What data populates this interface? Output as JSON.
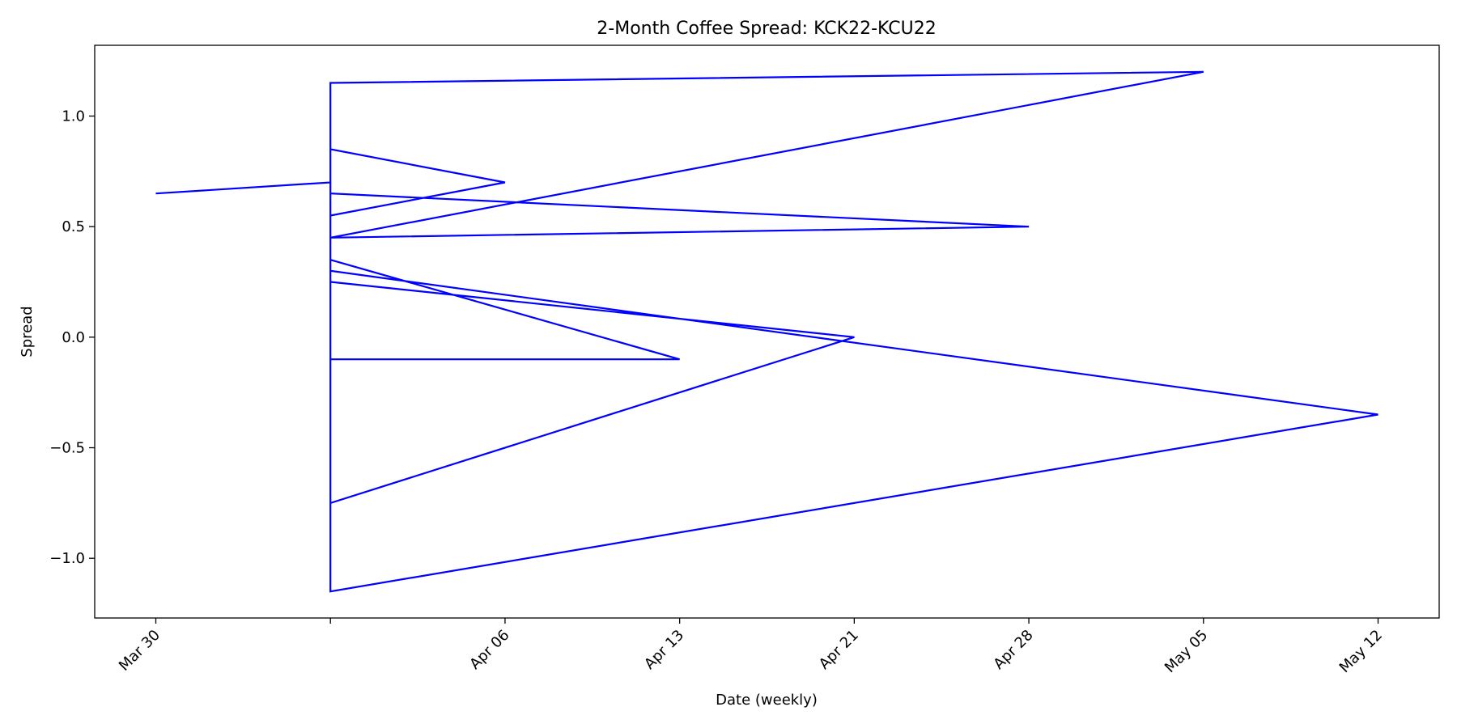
{
  "chart_data": {
    "type": "line",
    "title": "2-Month Coffee Spread: KCK22-KCU22",
    "xlabel": "Date (weekly)",
    "ylabel": "Spread",
    "x_tick_labels": [
      "Mar 30",
      "",
      "Apr 06",
      "Apr 13",
      "Apr 21",
      "Apr 28",
      "May 05",
      "May 12"
    ],
    "y_ticks": [
      -1.0,
      -0.5,
      0.0,
      0.5,
      1.0
    ],
    "y_tick_labels": [
      "−1.0",
      "−0.5",
      "0.0",
      "0.5",
      "1.0"
    ],
    "xlim": [
      -0.35,
      7.35
    ],
    "ylim": [
      -1.27,
      1.32
    ],
    "grid": false,
    "series": [
      {
        "color": "#0000ff",
        "points": [
          {
            "x": "Mar 30",
            "y": 0.65
          },
          {
            "x": "",
            "y": 0.7
          },
          {
            "x": "",
            "y": 0.15
          },
          {
            "x": "",
            "y": 0.95
          },
          {
            "x": "",
            "y": 0.85
          },
          {
            "x": "Apr 06",
            "y": 0.7
          },
          {
            "x": "",
            "y": 0.55
          },
          {
            "x": "",
            "y": 0.65
          },
          {
            "x": "Apr 28",
            "y": 0.5
          },
          {
            "x": "",
            "y": 0.45
          },
          {
            "x": "May 05",
            "y": 1.2
          },
          {
            "x": "",
            "y": 1.15
          },
          {
            "x": "",
            "y": 0.35
          },
          {
            "x": "Apr 13",
            "y": -0.1
          },
          {
            "x": "",
            "y": -0.1
          },
          {
            "x": "",
            "y": 0.3
          },
          {
            "x": "May 12",
            "y": -0.35
          },
          {
            "x": "",
            "y": -1.15
          },
          {
            "x": "",
            "y": 0.25
          },
          {
            "x": "Apr 21",
            "y": 0.0
          },
          {
            "x": "",
            "y": -0.75
          },
          {
            "x": "",
            "y": 0.45
          }
        ]
      }
    ]
  }
}
